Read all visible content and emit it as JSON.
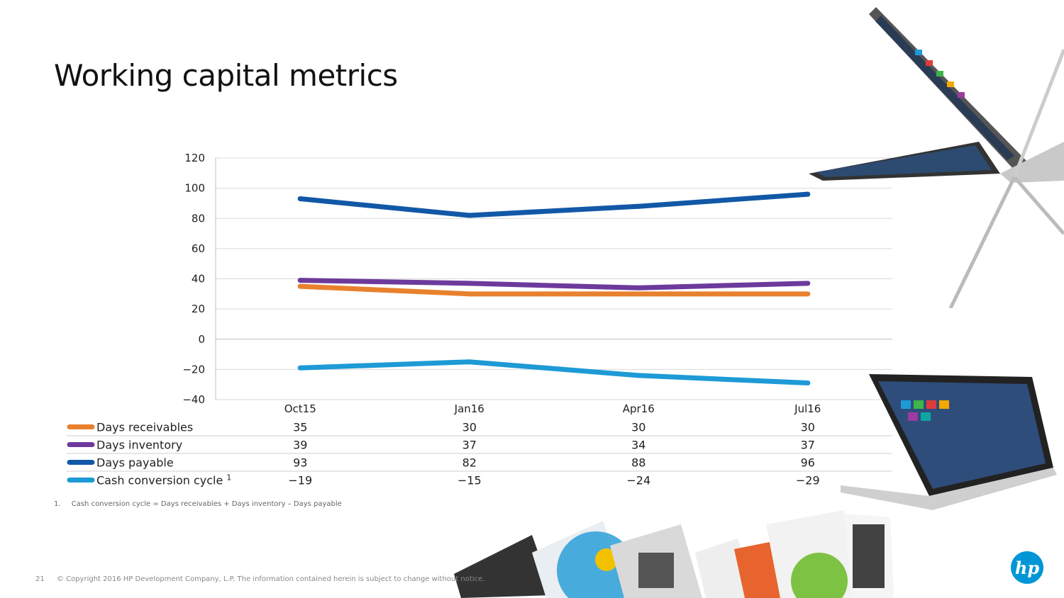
{
  "slide": {
    "title": "Working capital metrics",
    "footnote_num": "1.",
    "footnote": "Cash conversion cycle = Days receivables + Days inventory – Days payable",
    "page_number": "21",
    "copyright": "© Copyright 2016 HP Development Company, L.P. The information contained herein is subject to change without notice.",
    "logo_text": "hp"
  },
  "chart_data": {
    "type": "line",
    "categories": [
      "Oct15",
      "Jan16",
      "Apr16",
      "Jul16"
    ],
    "ylim": [
      -40,
      120
    ],
    "yticks": [
      "120",
      "100",
      "80",
      "60",
      "40",
      "20",
      "0",
      "−20",
      "−40"
    ],
    "ytick_values": [
      120,
      100,
      80,
      60,
      40,
      20,
      0,
      -20,
      -40
    ],
    "grid": true,
    "legend_placement": "table-left",
    "series": [
      {
        "name": "Days receivables",
        "color": "#e8812e",
        "values": [
          35,
          30,
          30,
          30
        ],
        "labels": [
          "35",
          "30",
          "30",
          "30"
        ]
      },
      {
        "name": "Days inventory",
        "color": "#6d3a9c",
        "values": [
          39,
          37,
          34,
          37
        ],
        "labels": [
          "39",
          "37",
          "34",
          "37"
        ]
      },
      {
        "name": "Days payable",
        "color": "#1158a7",
        "values": [
          93,
          82,
          88,
          96
        ],
        "labels": [
          "93",
          "82",
          "88",
          "96"
        ]
      },
      {
        "name": "Cash conversion cycle",
        "superscript": "1",
        "color": "#1e9ad6",
        "values": [
          -19,
          -15,
          -24,
          -29
        ],
        "labels": [
          "−19",
          "−15",
          "−24",
          "−29"
        ]
      }
    ]
  }
}
